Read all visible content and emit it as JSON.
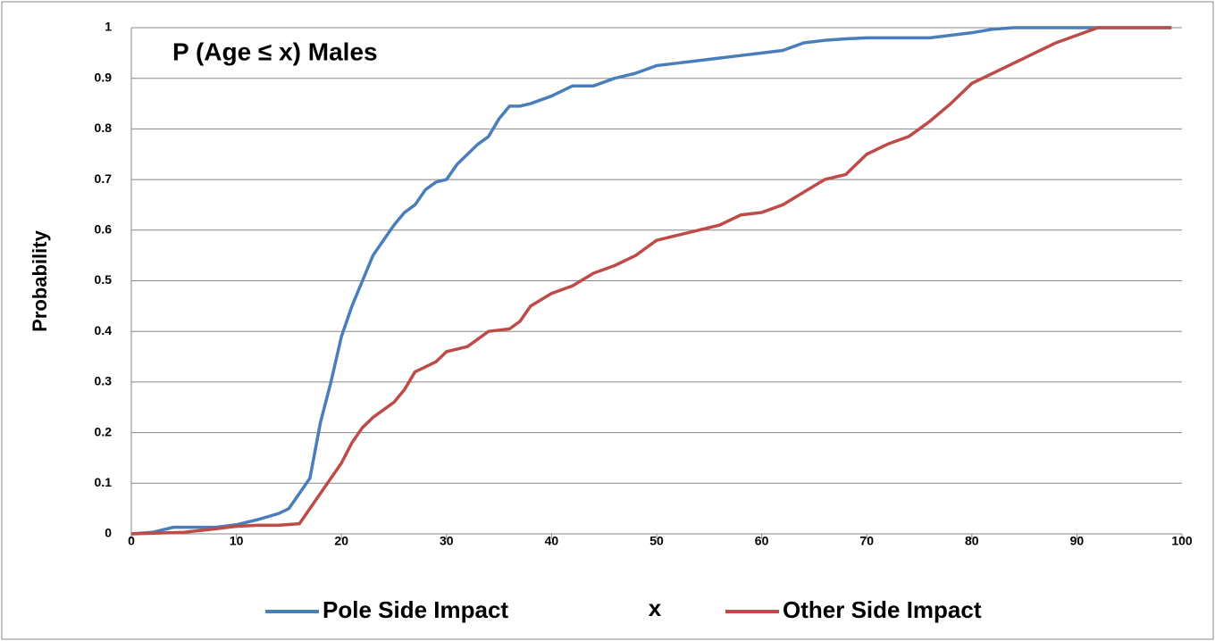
{
  "chart_data": {
    "type": "line",
    "title": "P (Age ≤ x)  Males",
    "xlabel": "x",
    "ylabel": "Probability",
    "xlim": [
      0,
      100
    ],
    "xticks": [
      0,
      10,
      20,
      30,
      40,
      50,
      60,
      70,
      80,
      90,
      100
    ],
    "ylim": [
      0,
      1
    ],
    "yticks": [
      0,
      0.1,
      0.2,
      0.3,
      0.4,
      0.5,
      0.6,
      0.7,
      0.8,
      0.9,
      1
    ],
    "grid": true,
    "legend": "bottom",
    "series": [
      {
        "name": "Pole Side Impact",
        "color": "#4a7ebb",
        "x": [
          0,
          2,
          4,
          6,
          8,
          10,
          12,
          14,
          15,
          16,
          17,
          18,
          19,
          20,
          21,
          22,
          23,
          24,
          25,
          26,
          27,
          28,
          29,
          30,
          31,
          32,
          33,
          34,
          35,
          36,
          37,
          38,
          40,
          42,
          44,
          46,
          48,
          50,
          52,
          54,
          56,
          58,
          60,
          62,
          64,
          66,
          68,
          70,
          72,
          74,
          76,
          78,
          80,
          82,
          84,
          90,
          99
        ],
        "values": [
          0,
          0.003,
          0.013,
          0.013,
          0.013,
          0.018,
          0.028,
          0.04,
          0.05,
          0.08,
          0.11,
          0.22,
          0.3,
          0.39,
          0.45,
          0.5,
          0.55,
          0.58,
          0.61,
          0.635,
          0.65,
          0.68,
          0.695,
          0.7,
          0.73,
          0.75,
          0.77,
          0.785,
          0.82,
          0.845,
          0.845,
          0.85,
          0.865,
          0.885,
          0.885,
          0.9,
          0.91,
          0.925,
          0.93,
          0.935,
          0.94,
          0.945,
          0.95,
          0.955,
          0.97,
          0.975,
          0.978,
          0.98,
          0.98,
          0.98,
          0.98,
          0.985,
          0.99,
          0.997,
          1,
          1,
          1
        ]
      },
      {
        "name": "Other Side Impact",
        "color": "#be4b48",
        "x": [
          0,
          5,
          8,
          10,
          12,
          14,
          16,
          17,
          18,
          19,
          20,
          21,
          22,
          23,
          24,
          25,
          26,
          27,
          28,
          29,
          30,
          32,
          34,
          36,
          37,
          38,
          40,
          42,
          44,
          46,
          48,
          50,
          52,
          54,
          56,
          58,
          60,
          62,
          64,
          66,
          68,
          70,
          72,
          74,
          76,
          78,
          80,
          82,
          84,
          86,
          88,
          90,
          92,
          99
        ],
        "values": [
          0,
          0.003,
          0.01,
          0.015,
          0.017,
          0.017,
          0.02,
          0.05,
          0.08,
          0.11,
          0.14,
          0.18,
          0.21,
          0.23,
          0.245,
          0.26,
          0.285,
          0.32,
          0.33,
          0.34,
          0.36,
          0.37,
          0.4,
          0.405,
          0.42,
          0.45,
          0.475,
          0.49,
          0.515,
          0.53,
          0.55,
          0.58,
          0.59,
          0.6,
          0.61,
          0.63,
          0.635,
          0.65,
          0.675,
          0.7,
          0.71,
          0.75,
          0.77,
          0.785,
          0.815,
          0.85,
          0.89,
          0.91,
          0.93,
          0.95,
          0.97,
          0.985,
          1,
          1
        ]
      }
    ]
  }
}
